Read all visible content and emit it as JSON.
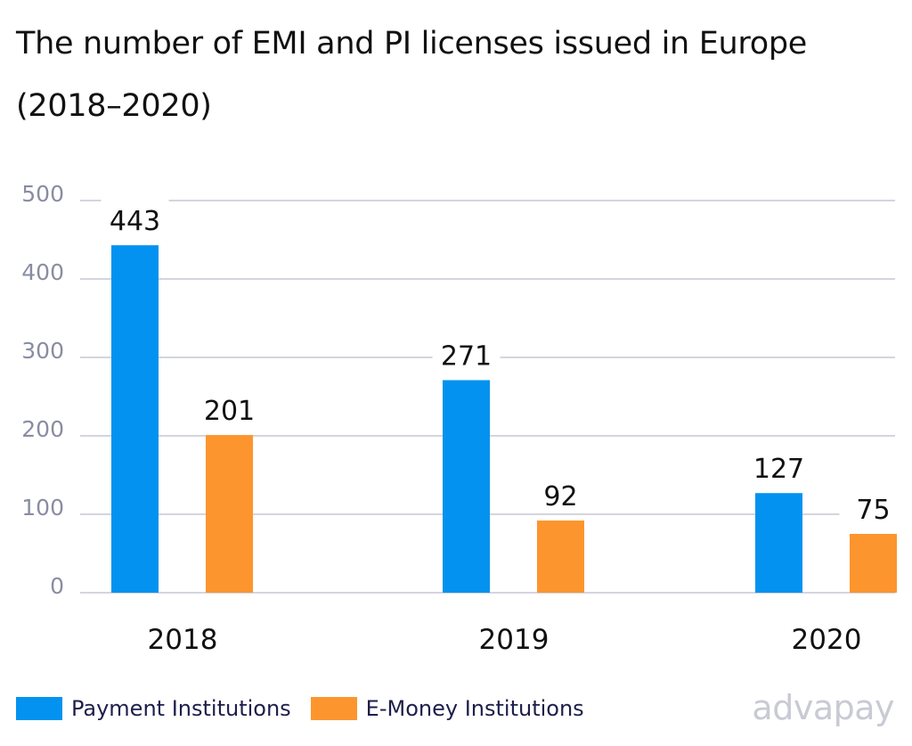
{
  "chart_data": {
    "type": "bar",
    "title": "The number of EMI and PI licenses issued in Europe (2018–2020)",
    "categories": [
      "2018",
      "2019",
      "2020"
    ],
    "series": [
      {
        "name": "Payment Institutions",
        "values": [
          443,
          271,
          127
        ],
        "color": "#0392ef"
      },
      {
        "name": "E-Money Institutions",
        "values": [
          201,
          92,
          75
        ],
        "color": "#fd952e"
      }
    ],
    "yticks": [
      "0",
      "100",
      "200",
      "300",
      "400",
      "500"
    ],
    "ylim": [
      0,
      500
    ],
    "grid": true,
    "legend": "bottom-left",
    "xlabel": "",
    "ylabel": ""
  },
  "brand": "advapay"
}
